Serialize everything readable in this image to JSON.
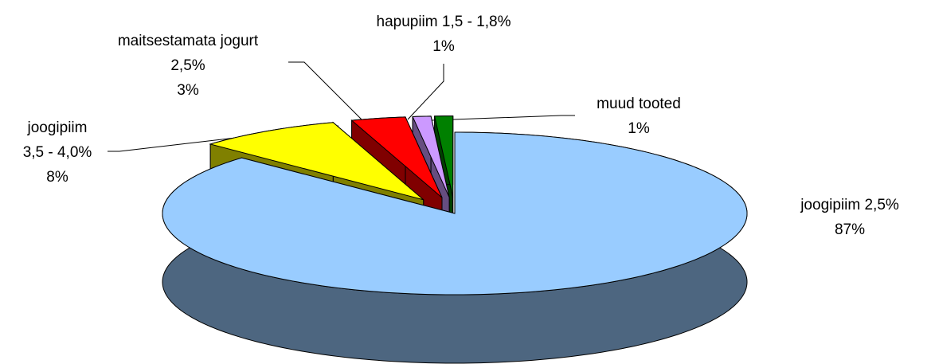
{
  "chart_data": {
    "type": "pie",
    "view": "3d",
    "exploded": true,
    "categories": [
      "joogipiim 2,5%",
      "joogipiim 3,5 - 4,0%",
      "maitsestamata jogurt 2,5%",
      "hapupiim 1,5 - 1,8%",
      "muud tooted"
    ],
    "values": [
      87,
      8,
      3,
      1,
      1
    ],
    "value_labels": [
      "87%",
      "8%",
      "3%",
      "1%",
      "1%"
    ],
    "colors": [
      "#99ccff",
      "#ffff00",
      "#ff0000",
      "#cc99ff",
      "#008000"
    ]
  }
}
